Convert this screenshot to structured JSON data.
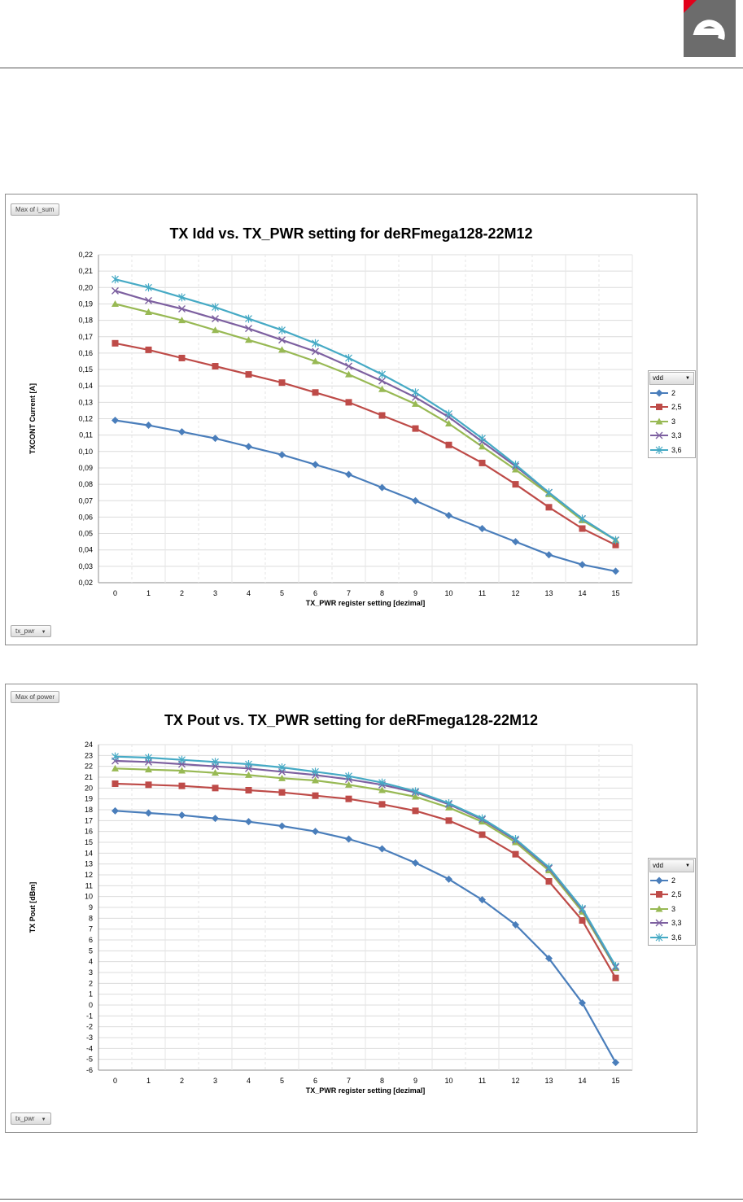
{
  "page": {
    "header_color": "#6c6c6c",
    "logo_accent": "#e2001a"
  },
  "chart_data": [
    {
      "type": "line",
      "title": "TX Idd vs. TX_PWR setting for deRFmega128-22M12",
      "xlabel": "TX_PWR register setting [dezimal]",
      "ylabel": "TXCONT Current [A]",
      "field_button_values": "Max of i_sum",
      "field_button_axis": "tx_pwr",
      "legend_title": "vdd",
      "legend_placement": "right",
      "grid": true,
      "ylim": [
        0.02,
        0.22
      ],
      "ytick_step": 0.01,
      "ytick_decimals": 2,
      "categories": [
        "0",
        "1",
        "2",
        "3",
        "4",
        "5",
        "6",
        "7",
        "8",
        "9",
        "10",
        "11",
        "12",
        "13",
        "14",
        "15"
      ],
      "series": [
        {
          "name": "2",
          "color": "#4a7ebb",
          "marker": "diamond",
          "values": [
            0.119,
            0.116,
            0.112,
            0.108,
            0.103,
            0.098,
            0.092,
            0.086,
            0.078,
            0.07,
            0.061,
            0.053,
            0.045,
            0.037,
            0.031,
            0.027
          ]
        },
        {
          "name": "2,5",
          "color": "#be4b48",
          "marker": "square",
          "values": [
            0.166,
            0.162,
            0.157,
            0.152,
            0.147,
            0.142,
            0.136,
            0.13,
            0.122,
            0.114,
            0.104,
            0.093,
            0.08,
            0.066,
            0.053,
            0.043
          ]
        },
        {
          "name": "3",
          "color": "#98b954",
          "marker": "triangle",
          "values": [
            0.19,
            0.185,
            0.18,
            0.174,
            0.168,
            0.162,
            0.155,
            0.147,
            0.138,
            0.129,
            0.117,
            0.103,
            0.089,
            0.074,
            0.058,
            0.046
          ]
        },
        {
          "name": "3,3",
          "color": "#7d60a0",
          "marker": "x",
          "values": [
            0.198,
            0.192,
            0.187,
            0.181,
            0.175,
            0.168,
            0.161,
            0.152,
            0.143,
            0.133,
            0.121,
            0.106,
            0.091,
            0.075,
            0.059,
            0.046
          ]
        },
        {
          "name": "3,6",
          "color": "#46aac5",
          "marker": "star",
          "values": [
            0.205,
            0.2,
            0.194,
            0.188,
            0.181,
            0.174,
            0.166,
            0.157,
            0.147,
            0.136,
            0.123,
            0.108,
            0.092,
            0.075,
            0.059,
            0.046
          ]
        }
      ]
    },
    {
      "type": "line",
      "title": "TX Pout vs. TX_PWR setting for deRFmega128-22M12",
      "xlabel": "TX_PWR register setting [dezimal]",
      "ylabel": "TX Pout [dBm]",
      "field_button_values": "Max of power",
      "field_button_axis": "tx_pwr",
      "legend_title": "vdd",
      "legend_placement": "right",
      "grid": true,
      "ylim": [
        -6,
        24
      ],
      "ytick_step": 1,
      "ytick_decimals": 0,
      "categories": [
        "0",
        "1",
        "2",
        "3",
        "4",
        "5",
        "6",
        "7",
        "8",
        "9",
        "10",
        "11",
        "12",
        "13",
        "14",
        "15"
      ],
      "series": [
        {
          "name": "2",
          "color": "#4a7ebb",
          "marker": "diamond",
          "values": [
            17.9,
            17.7,
            17.5,
            17.2,
            16.9,
            16.5,
            16.0,
            15.3,
            14.4,
            13.1,
            11.6,
            9.7,
            7.4,
            4.3,
            0.2,
            -5.3
          ]
        },
        {
          "name": "2,5",
          "color": "#be4b48",
          "marker": "square",
          "values": [
            20.4,
            20.3,
            20.2,
            20.0,
            19.8,
            19.6,
            19.3,
            19.0,
            18.5,
            17.9,
            17.0,
            15.7,
            13.9,
            11.4,
            7.8,
            2.5
          ]
        },
        {
          "name": "3",
          "color": "#98b954",
          "marker": "triangle",
          "values": [
            21.8,
            21.7,
            21.6,
            21.4,
            21.2,
            20.9,
            20.7,
            20.3,
            19.8,
            19.2,
            18.2,
            16.9,
            15.0,
            12.4,
            8.6,
            3.4
          ]
        },
        {
          "name": "3,3",
          "color": "#7d60a0",
          "marker": "x",
          "values": [
            22.5,
            22.4,
            22.2,
            22.0,
            21.8,
            21.5,
            21.2,
            20.8,
            20.3,
            19.6,
            18.5,
            17.1,
            15.2,
            12.6,
            8.8,
            3.5
          ]
        },
        {
          "name": "3,6",
          "color": "#46aac5",
          "marker": "star",
          "values": [
            22.9,
            22.8,
            22.6,
            22.4,
            22.2,
            21.9,
            21.5,
            21.1,
            20.5,
            19.7,
            18.6,
            17.2,
            15.3,
            12.7,
            8.9,
            3.6
          ]
        }
      ]
    }
  ]
}
